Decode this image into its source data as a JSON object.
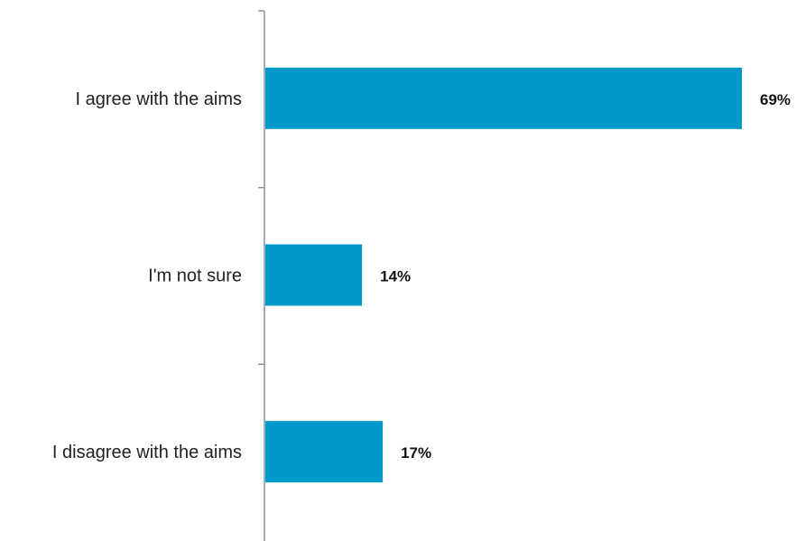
{
  "chart_data": {
    "type": "bar",
    "orientation": "horizontal",
    "categories": [
      "I agree with the aims",
      "I'm not sure",
      "I disagree with the aims"
    ],
    "values": [
      69,
      14,
      17
    ],
    "value_labels": [
      "69%",
      "14%",
      "17%"
    ],
    "unit": "%",
    "xlim": [
      0,
      69
    ],
    "grid": false,
    "legend": "none",
    "bar_color": "#0099CC"
  }
}
